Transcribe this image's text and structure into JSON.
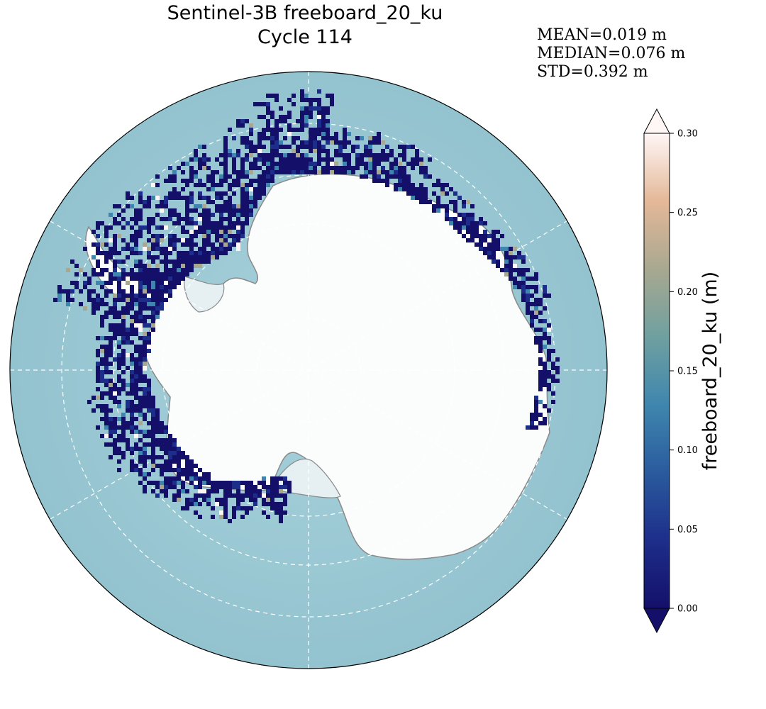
{
  "title": {
    "line1": "Sentinel-3B freeboard_20_ku",
    "line2": "Cycle 114"
  },
  "stats": {
    "mean": "MEAN=0.019 m",
    "median": "MEDIAN=0.076 m",
    "std": "STD=0.392 m"
  },
  "colorbar": {
    "label": "freeboard_20_ku (m)",
    "min": 0.0,
    "max": 0.3,
    "extend": "both",
    "ticks": [
      "0.00",
      "0.05",
      "0.10",
      "0.15",
      "0.20",
      "0.25",
      "0.30"
    ],
    "colors": [
      "#14106a",
      "#1d2e8a",
      "#2a5b9e",
      "#3f86ae",
      "#6fa0a0",
      "#a8a890",
      "#e4b898",
      "#fff6f6"
    ]
  },
  "map": {
    "projection": "south-polar-stereographic",
    "ocean_color": "#9ecbd6",
    "land_color": "#fbfcfc",
    "graticule": "dashed-white"
  }
}
